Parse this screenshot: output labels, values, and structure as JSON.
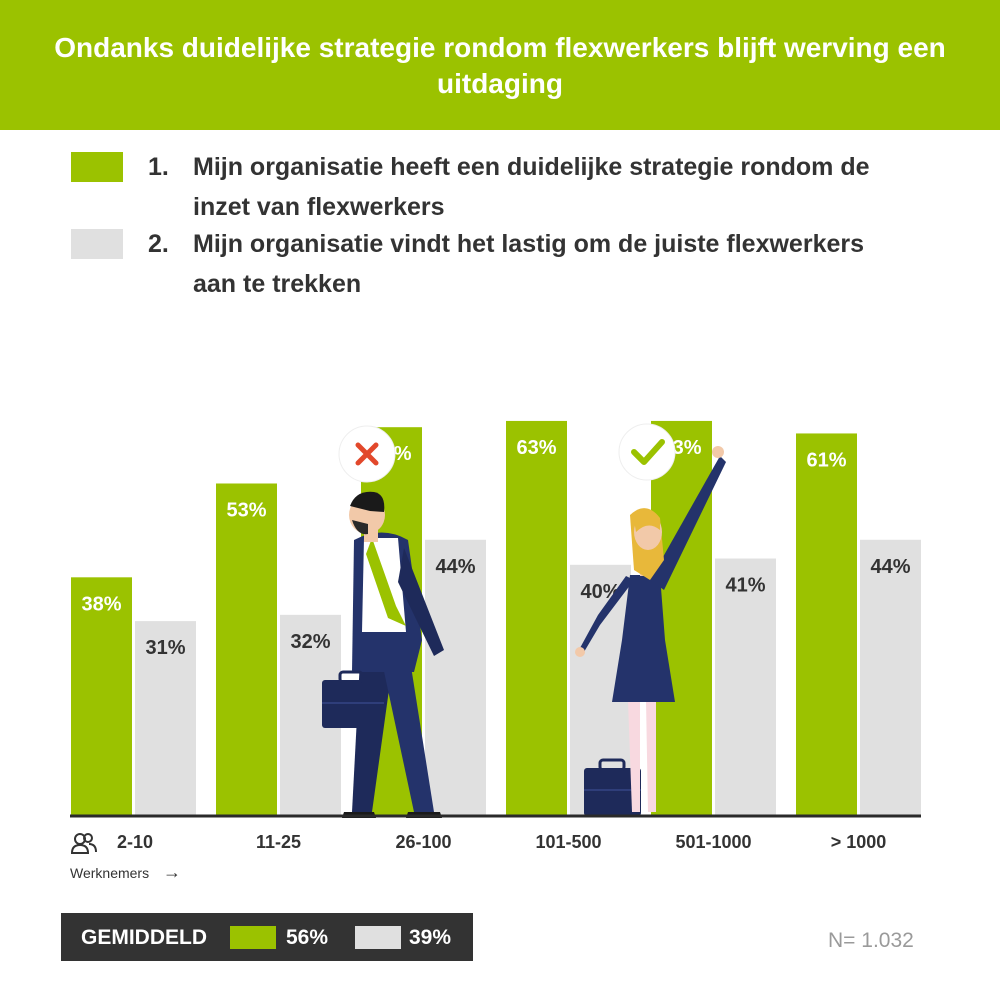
{
  "colors": {
    "series1": "#9bc200",
    "series2": "#e0e0e0",
    "header": "#9bc200",
    "footer": "#333333"
  },
  "legend": [
    {
      "number": "1.",
      "line1": "Mijn organisatie heeft een duidelijke strategie rondom de",
      "line2": "inzet van flexwerkers"
    },
    {
      "number": "2.",
      "line1": "Mijn organisatie vindt het lastig om de juiste flexwerkers",
      "line2": "aan te trekken"
    }
  ],
  "axis_note": {
    "icon": "people-icon",
    "label": "Werknemers",
    "arrow": "→"
  },
  "footer": {
    "label": "GEMIDDELD",
    "value1": "56%",
    "value2": "39%"
  },
  "sample_note": "N= 1.032",
  "illustration": {
    "man_badge_icon": "x-icon",
    "woman_badge_icon": "check-icon"
  },
  "chart_data": {
    "type": "bar",
    "title": "Ondanks duidelijke strategie rondom flexwerkers blijft werving een uitdaging",
    "categories": [
      "2-10",
      "11-25",
      "26-100",
      "101-500",
      "501-1000",
      "> 1000"
    ],
    "series": [
      {
        "values": [
          38,
          53,
          62,
          63,
          63,
          61
        ]
      },
      {
        "values": [
          31,
          32,
          44,
          40,
          41,
          44
        ]
      }
    ],
    "value_suffix": "%",
    "ylim": [
      0,
      80
    ],
    "grid": false,
    "legend_position": "top"
  }
}
